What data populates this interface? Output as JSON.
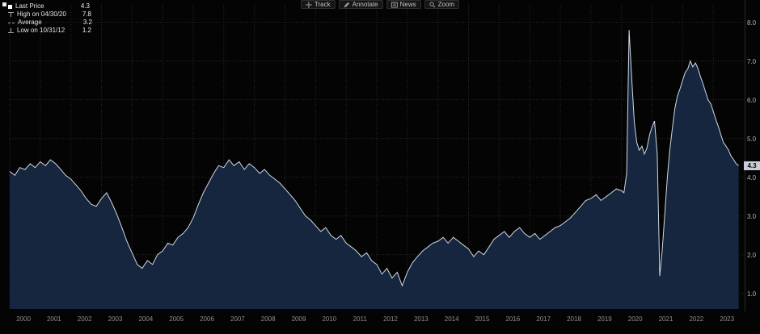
{
  "window": {
    "app": "terminal-chart"
  },
  "toolbar": {
    "items": [
      {
        "label": "Track",
        "icon": "crosshair-icon"
      },
      {
        "label": "Annotate",
        "icon": "pencil-icon"
      },
      {
        "label": "News",
        "icon": "news-icon"
      },
      {
        "label": "Zoom",
        "icon": "magnifier-icon"
      }
    ]
  },
  "legend": {
    "items": [
      {
        "marker": "square-swatch",
        "label": "Last Price",
        "value": "4.3"
      },
      {
        "marker": "high-tick",
        "label": "High on 04/30/20",
        "value": "7.8"
      },
      {
        "marker": "dash",
        "label": "Average",
        "value": "3.2"
      },
      {
        "marker": "low-tick",
        "label": "Low on 10/31/12",
        "value": "1.2"
      }
    ]
  },
  "axes": {
    "y_ticks": [
      "8.0",
      "7.0",
      "6.0",
      "5.0",
      "4.0",
      "3.0",
      "2.0",
      "1.0"
    ],
    "x_ticks": [
      "2000",
      "2001",
      "2002",
      "2003",
      "2004",
      "2005",
      "2006",
      "2007",
      "2008",
      "2009",
      "2010",
      "2011",
      "2012",
      "2013",
      "2014",
      "2015",
      "2016",
      "2017",
      "2018",
      "2019",
      "2020",
      "2021",
      "2022",
      "2023"
    ],
    "last_price_badge": "4.3"
  },
  "colors": {
    "background": "#040404",
    "area_fill": "#16263e",
    "line": "#cfd9e6",
    "grid": "#2b2b2b",
    "badge_bg": "#c9ced6"
  },
  "chart_data": {
    "type": "area",
    "title": "",
    "xlabel": "",
    "ylabel": "",
    "xlim": [
      2000,
      2024
    ],
    "ylim": [
      1.0,
      8.0
    ],
    "y_ticks": [
      1,
      2,
      3,
      4,
      5,
      6,
      7,
      8
    ],
    "grid": true,
    "legend_position": "top-left",
    "stats": {
      "last": 4.3,
      "high": 7.8,
      "high_date": "04/30/20",
      "average": 3.2,
      "low": 1.2,
      "low_date": "10/31/12"
    },
    "series": [
      {
        "name": "Last Price",
        "points": [
          [
            2000.0,
            4.15
          ],
          [
            2000.17,
            4.05
          ],
          [
            2000.33,
            4.25
          ],
          [
            2000.5,
            4.2
          ],
          [
            2000.67,
            4.35
          ],
          [
            2000.83,
            4.25
          ],
          [
            2001.0,
            4.4
          ],
          [
            2001.17,
            4.3
          ],
          [
            2001.33,
            4.45
          ],
          [
            2001.5,
            4.35
          ],
          [
            2001.67,
            4.2
          ],
          [
            2001.83,
            4.05
          ],
          [
            2002.0,
            3.95
          ],
          [
            2002.17,
            3.8
          ],
          [
            2002.33,
            3.65
          ],
          [
            2002.5,
            3.45
          ],
          [
            2002.67,
            3.3
          ],
          [
            2002.83,
            3.25
          ],
          [
            2003.0,
            3.45
          ],
          [
            2003.17,
            3.6
          ],
          [
            2003.33,
            3.35
          ],
          [
            2003.5,
            3.05
          ],
          [
            2003.67,
            2.7
          ],
          [
            2003.83,
            2.35
          ],
          [
            2004.0,
            2.05
          ],
          [
            2004.17,
            1.75
          ],
          [
            2004.33,
            1.65
          ],
          [
            2004.5,
            1.85
          ],
          [
            2004.67,
            1.75
          ],
          [
            2004.83,
            2.0
          ],
          [
            2005.0,
            2.1
          ],
          [
            2005.17,
            2.3
          ],
          [
            2005.33,
            2.25
          ],
          [
            2005.5,
            2.45
          ],
          [
            2005.67,
            2.55
          ],
          [
            2005.83,
            2.7
          ],
          [
            2006.0,
            2.95
          ],
          [
            2006.17,
            3.3
          ],
          [
            2006.33,
            3.6
          ],
          [
            2006.5,
            3.85
          ],
          [
            2006.67,
            4.1
          ],
          [
            2006.83,
            4.3
          ],
          [
            2007.0,
            4.25
          ],
          [
            2007.17,
            4.45
          ],
          [
            2007.33,
            4.3
          ],
          [
            2007.5,
            4.4
          ],
          [
            2007.67,
            4.2
          ],
          [
            2007.83,
            4.35
          ],
          [
            2008.0,
            4.25
          ],
          [
            2008.17,
            4.1
          ],
          [
            2008.33,
            4.2
          ],
          [
            2008.5,
            4.05
          ],
          [
            2008.67,
            3.95
          ],
          [
            2008.83,
            3.85
          ],
          [
            2009.0,
            3.7
          ],
          [
            2009.17,
            3.55
          ],
          [
            2009.33,
            3.4
          ],
          [
            2009.5,
            3.2
          ],
          [
            2009.67,
            3.0
          ],
          [
            2009.83,
            2.9
          ],
          [
            2010.0,
            2.75
          ],
          [
            2010.17,
            2.6
          ],
          [
            2010.33,
            2.7
          ],
          [
            2010.5,
            2.5
          ],
          [
            2010.67,
            2.4
          ],
          [
            2010.83,
            2.5
          ],
          [
            2011.0,
            2.3
          ],
          [
            2011.17,
            2.2
          ],
          [
            2011.33,
            2.1
          ],
          [
            2011.5,
            1.95
          ],
          [
            2011.67,
            2.05
          ],
          [
            2011.83,
            1.85
          ],
          [
            2012.0,
            1.75
          ],
          [
            2012.17,
            1.5
          ],
          [
            2012.33,
            1.65
          ],
          [
            2012.5,
            1.4
          ],
          [
            2012.67,
            1.55
          ],
          [
            2012.83,
            1.2
          ],
          [
            2013.0,
            1.55
          ],
          [
            2013.17,
            1.8
          ],
          [
            2013.33,
            1.95
          ],
          [
            2013.5,
            2.1
          ],
          [
            2013.67,
            2.2
          ],
          [
            2013.83,
            2.3
          ],
          [
            2014.0,
            2.35
          ],
          [
            2014.17,
            2.45
          ],
          [
            2014.33,
            2.3
          ],
          [
            2014.5,
            2.45
          ],
          [
            2014.67,
            2.35
          ],
          [
            2014.83,
            2.25
          ],
          [
            2015.0,
            2.15
          ],
          [
            2015.17,
            1.95
          ],
          [
            2015.33,
            2.1
          ],
          [
            2015.5,
            2.0
          ],
          [
            2015.67,
            2.2
          ],
          [
            2015.83,
            2.4
          ],
          [
            2016.0,
            2.5
          ],
          [
            2016.17,
            2.6
          ],
          [
            2016.33,
            2.45
          ],
          [
            2016.5,
            2.6
          ],
          [
            2016.67,
            2.7
          ],
          [
            2016.83,
            2.55
          ],
          [
            2017.0,
            2.45
          ],
          [
            2017.17,
            2.55
          ],
          [
            2017.33,
            2.4
          ],
          [
            2017.5,
            2.5
          ],
          [
            2017.67,
            2.6
          ],
          [
            2017.83,
            2.7
          ],
          [
            2018.0,
            2.75
          ],
          [
            2018.17,
            2.85
          ],
          [
            2018.33,
            2.95
          ],
          [
            2018.5,
            3.1
          ],
          [
            2018.67,
            3.25
          ],
          [
            2018.83,
            3.4
          ],
          [
            2019.0,
            3.45
          ],
          [
            2019.17,
            3.55
          ],
          [
            2019.33,
            3.4
          ],
          [
            2019.5,
            3.5
          ],
          [
            2019.67,
            3.6
          ],
          [
            2019.83,
            3.7
          ],
          [
            2020.0,
            3.65
          ],
          [
            2020.08,
            3.6
          ],
          [
            2020.17,
            4.1
          ],
          [
            2020.25,
            7.8
          ],
          [
            2020.33,
            6.6
          ],
          [
            2020.42,
            5.4
          ],
          [
            2020.5,
            4.9
          ],
          [
            2020.58,
            4.7
          ],
          [
            2020.67,
            4.8
          ],
          [
            2020.75,
            4.6
          ],
          [
            2020.83,
            4.75
          ],
          [
            2020.92,
            5.1
          ],
          [
            2021.0,
            5.3
          ],
          [
            2021.08,
            5.45
          ],
          [
            2021.17,
            4.6
          ],
          [
            2021.25,
            1.45
          ],
          [
            2021.33,
            2.1
          ],
          [
            2021.42,
            3.1
          ],
          [
            2021.5,
            4.0
          ],
          [
            2021.58,
            4.7
          ],
          [
            2021.67,
            5.3
          ],
          [
            2021.75,
            5.8
          ],
          [
            2021.83,
            6.1
          ],
          [
            2021.92,
            6.3
          ],
          [
            2022.0,
            6.5
          ],
          [
            2022.08,
            6.7
          ],
          [
            2022.17,
            6.8
          ],
          [
            2022.25,
            7.0
          ],
          [
            2022.33,
            6.85
          ],
          [
            2022.42,
            6.95
          ],
          [
            2022.5,
            6.8
          ],
          [
            2022.58,
            6.6
          ],
          [
            2022.67,
            6.4
          ],
          [
            2022.75,
            6.2
          ],
          [
            2022.83,
            6.0
          ],
          [
            2022.92,
            5.9
          ],
          [
            2023.0,
            5.7
          ],
          [
            2023.08,
            5.5
          ],
          [
            2023.17,
            5.3
          ],
          [
            2023.25,
            5.1
          ],
          [
            2023.33,
            4.9
          ],
          [
            2023.42,
            4.8
          ],
          [
            2023.5,
            4.7
          ],
          [
            2023.58,
            4.55
          ],
          [
            2023.67,
            4.45
          ],
          [
            2023.75,
            4.35
          ],
          [
            2023.83,
            4.3
          ]
        ]
      }
    ]
  }
}
